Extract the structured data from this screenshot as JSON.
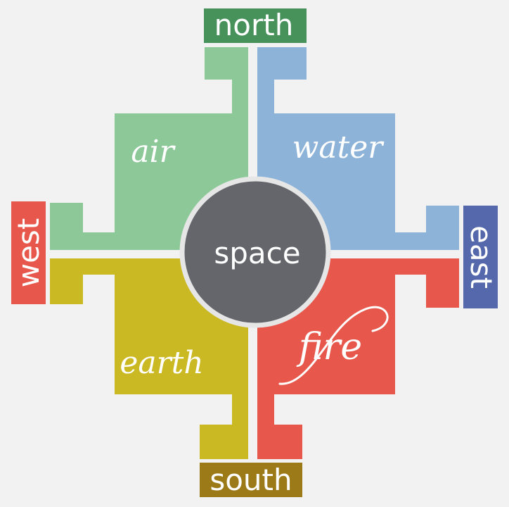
{
  "directions": {
    "north": "north",
    "south": "south",
    "east": "east",
    "west": "west"
  },
  "elements": {
    "air": "air",
    "water": "water",
    "earth": "earth",
    "fire": "fire",
    "space": "space"
  },
  "colors": {
    "background": "#f2f2f2",
    "air": "#8dc898",
    "water": "#8db3d8",
    "earth": "#cbb924",
    "fire": "#e8574c",
    "space": "#64666b",
    "space_ring": "#e6e6e6",
    "north": "#47915b",
    "south": "#9b7a17",
    "east": "#5468ab",
    "west": "#e8574c"
  }
}
